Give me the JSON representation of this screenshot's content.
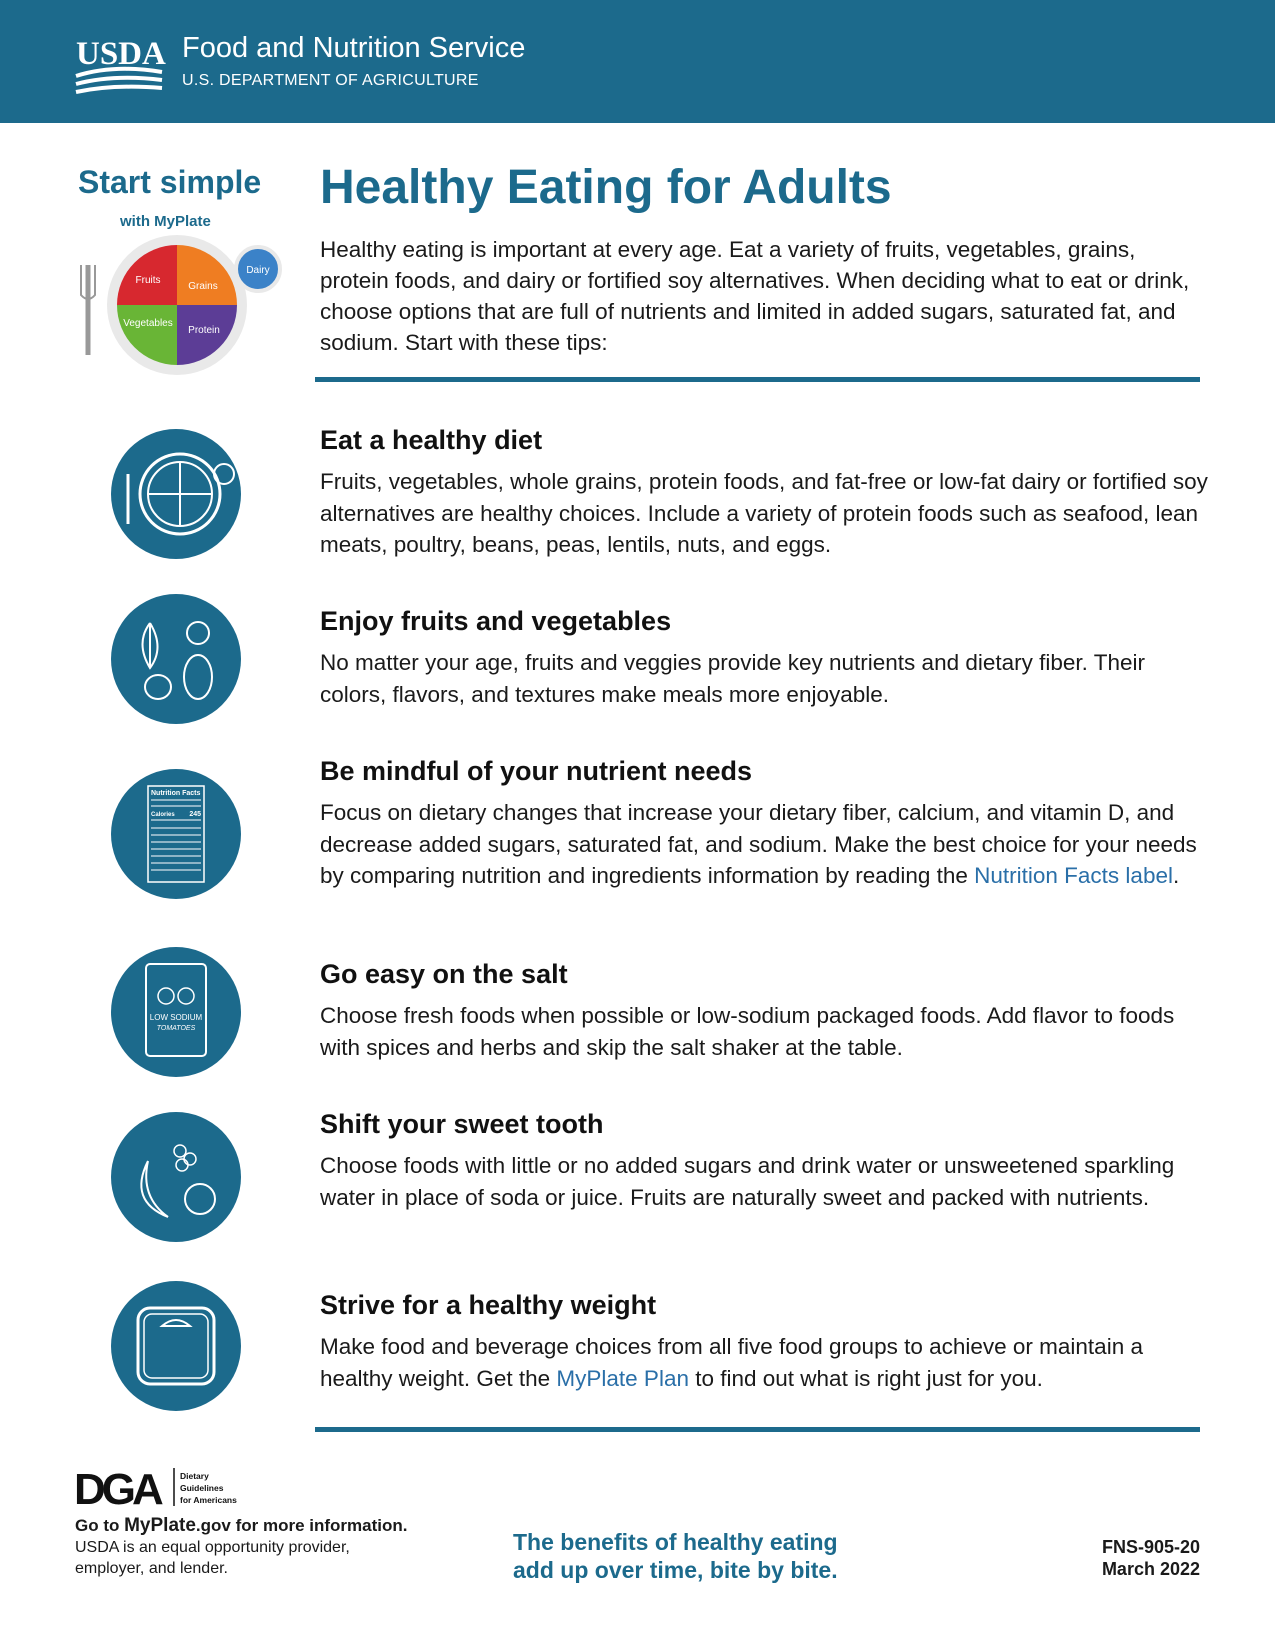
{
  "header": {
    "logo": "USDA",
    "agency": "Food and Nutrition Service",
    "department": "U.S. DEPARTMENT OF AGRICULTURE"
  },
  "myplate": {
    "tagline": "Start simple",
    "with": "with ",
    "brand": "MyPlate",
    "groups": [
      "Fruits",
      "Grains",
      "Vegetables",
      "Protein",
      "Dairy"
    ]
  },
  "title": "Healthy Eating for Adults",
  "intro": "Healthy eating is important at every age. Eat a variety of fruits, vegetables, grains, protein foods, and dairy or fortified soy alternatives. When deciding what to eat or drink, choose options that are full of nutrients and limited in added sugars, saturated fat, and sodium. Start with these tips:",
  "tips": [
    {
      "heading": "Eat a healthy diet",
      "text": "Fruits, vegetables, whole grains, protein foods, and fat-free or low-fat dairy or fortified soy alternatives are healthy choices. Include a variety of protein foods such as seafood, lean meats, poultry, beans, peas, lentils, nuts, and eggs."
    },
    {
      "heading": "Enjoy fruits and vegetables",
      "text": "No matter your age, fruits and veggies provide key nutrients and dietary fiber. Their colors, flavors, and textures make meals more enjoyable."
    },
    {
      "heading": "Be mindful of your nutrient needs",
      "text": "Focus on dietary changes that increase your dietary fiber, calcium, and vitamin D, and decrease added sugars, saturated fat, and sodium. Make the best choice for your needs by comparing nutrition and ingredients information by reading the ",
      "link": "Nutrition Facts label",
      "after": ".",
      "icon": {
        "title": "Nutrition Facts",
        "calories": "Calories",
        "amount": "245"
      }
    },
    {
      "heading": "Go easy on the salt",
      "text": "Choose fresh foods when possible or low-sodium packaged foods. Add flavor to foods with spices and herbs and skip the salt shaker at the table.",
      "icon": {
        "label": "LOW SODIUM",
        "sublabel": "TOMATOES"
      }
    },
    {
      "heading": "Shift your sweet tooth",
      "text": "Choose foods with little or no added sugars and drink water or unsweetened sparkling water in place of soda or juice. Fruits are naturally sweet and packed with nutrients."
    },
    {
      "heading": "Strive for a healthy weight",
      "text": "Make food and beverage choices from all five food groups to achieve or maintain a healthy weight. Get the ",
      "link": "MyPlate Plan",
      "after": " to find out what is right just for you."
    }
  ],
  "footer": {
    "dga_logo": "DGA",
    "dga_name": [
      "Dietary",
      "Guidelines",
      "for Americans"
    ],
    "goto_before": "Go to ",
    "goto_brand": "MyPlate",
    "goto_after": ".gov for more information.",
    "equal_opportunity": [
      "USDA is an equal opportunity provider,",
      "employer, and lender."
    ],
    "message": [
      "The benefits of healthy eating",
      "add up over time, bite by bite."
    ],
    "code": "FNS-905-20",
    "date": "March 2022"
  }
}
